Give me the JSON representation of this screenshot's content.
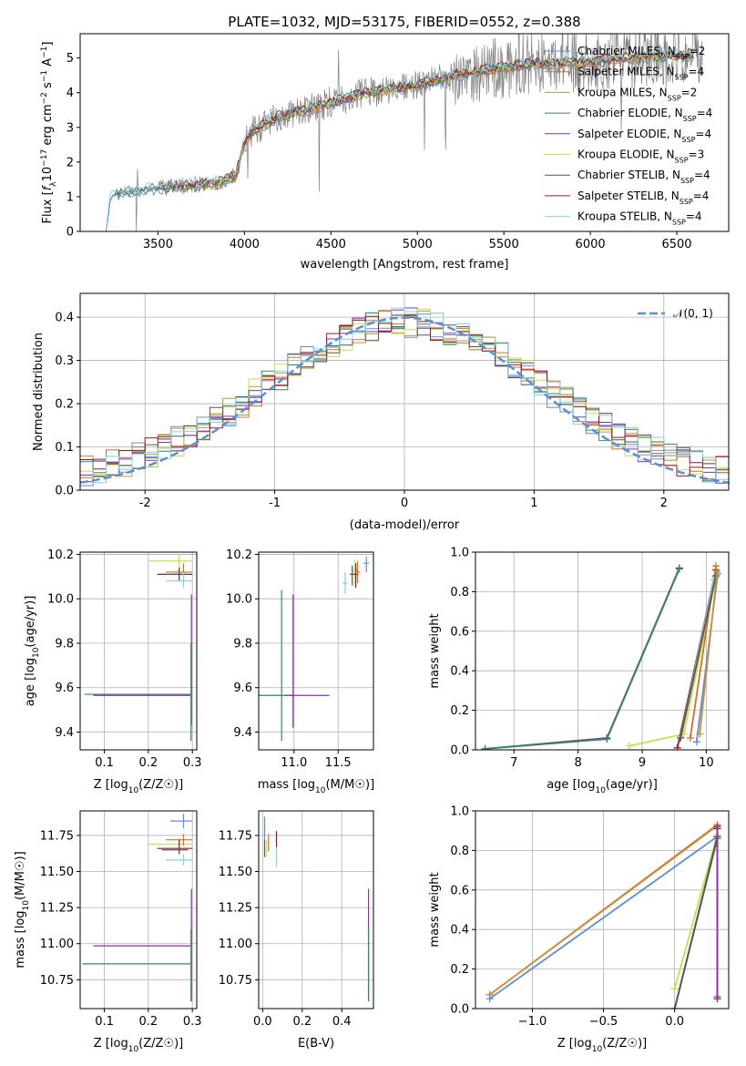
{
  "figure": {
    "title": "PLATE=1032, MJD=53175, FIBERID=0552, z=0.388"
  },
  "series_styles": [
    {
      "name": "Chabrier MILES, N_{SSP}=2",
      "color": "#5a8fd8"
    },
    {
      "name": "Salpeter MILES, N_{SSP}=4",
      "color": "#d06f28"
    },
    {
      "name": "Kroupa MILES, N_{SSP}=2",
      "color": "#c8923a"
    },
    {
      "name": "Chabrier ELODIE, N_{SSP}=4",
      "color": "#2e8b57"
    },
    {
      "name": "Salpeter ELODIE, N_{SSP}=4",
      "color": "#8b2fb3"
    },
    {
      "name": "Kroupa ELODIE, N_{SSP}=3",
      "color": "#c8e04a"
    },
    {
      "name": "Chabrier STELIB, N_{SSP}=4",
      "color": "#555555"
    },
    {
      "name": "Salpeter STELIB, N_{SSP}=4",
      "color": "#a01818"
    },
    {
      "name": "Kroupa STELIB, N_{SSP}=4",
      "color": "#7fd4e0"
    }
  ],
  "chart_data": [
    {
      "id": "spectrum",
      "type": "line",
      "xlabel": "wavelength [Angstrom, rest frame]",
      "ylabel": "Flux [f_λ 10^{-17} erg cm^{-2} s^{-1} A^{-1}]",
      "xlim": [
        3050,
        6800
      ],
      "ylim": [
        0,
        5.7
      ],
      "xticks": [
        3500,
        4000,
        4500,
        5000,
        5500,
        6000,
        6500
      ],
      "yticks": [
        0,
        1,
        2,
        3,
        4,
        5
      ],
      "grid": false,
      "legend": "right",
      "spectrum_knots": {
        "x": [
          3200,
          3220,
          3250,
          3400,
          3550,
          3700,
          3850,
          3950,
          4000,
          4050,
          4200,
          4500,
          4700,
          5000,
          5200,
          5400,
          5600,
          5800,
          6000,
          6200,
          6400,
          6600
        ],
        "y": [
          0,
          0.9,
          1.1,
          1.2,
          1.25,
          1.35,
          1.4,
          1.6,
          2.6,
          2.9,
          3.3,
          3.7,
          4.0,
          4.2,
          4.5,
          4.65,
          4.8,
          4.85,
          4.9,
          5.0,
          5.05,
          5.1
        ]
      }
    },
    {
      "id": "residuals",
      "type": "line",
      "xlabel": "(data-model)/error",
      "ylabel": "Normed distribution",
      "xlim": [
        -2.5,
        2.5
      ],
      "ylim": [
        0,
        0.455
      ],
      "xticks": [
        -2,
        -1,
        0,
        1,
        2
      ],
      "yticks": [
        0.0,
        0.1,
        0.2,
        0.3,
        0.4
      ],
      "ytick_labels": [
        "0.0",
        "0.1",
        "0.2",
        "0.3",
        "0.4"
      ],
      "grid": true,
      "legend": "top-right",
      "reference_curve": {
        "name": "𝒩(0, 1)",
        "mean": 0,
        "sigma": 1,
        "color": "#5a8fd8"
      },
      "bin_width": 0.1
    },
    {
      "id": "age-vs-z",
      "type": "scatter",
      "xlabel": "Z [log10(Z/Z☉)]",
      "ylabel": "age [log10(age/yr)]",
      "xlim": [
        0.045,
        0.31
      ],
      "ylim": [
        9.32,
        10.21
      ],
      "xticks": [
        0.1,
        0.2,
        0.3
      ],
      "yticks": [
        9.4,
        9.6,
        9.8,
        10.0,
        10.2
      ],
      "ytick_labels": [
        "9.4",
        "9.6",
        "9.8",
        "10.0",
        "10.2"
      ],
      "grid": true,
      "points": [
        {
          "s": 4,
          "x": 0.298,
          "y": 9.565,
          "xlo": 0.075,
          "xhi": 0.298,
          "ylo": 9.43,
          "yhi": 10.02
        },
        {
          "s": 3,
          "x": 0.297,
          "y": 9.57,
          "xlo": 0.055,
          "xhi": 0.297,
          "ylo": 9.36,
          "yhi": 9.8
        },
        {
          "s": 5,
          "x": 0.27,
          "y": 10.17,
          "xlo": 0.2,
          "xhi": 0.3,
          "ylo": 10.13,
          "yhi": 10.2
        },
        {
          "s": 7,
          "x": 0.27,
          "y": 10.11,
          "xlo": 0.22,
          "xhi": 0.3,
          "ylo": 10.08,
          "yhi": 10.14
        },
        {
          "s": 1,
          "x": 0.28,
          "y": 10.12,
          "xlo": 0.24,
          "xhi": 0.3,
          "ylo": 10.09,
          "yhi": 10.16
        },
        {
          "s": 6,
          "x": 0.27,
          "y": 10.11,
          "xlo": 0.23,
          "xhi": 0.29,
          "ylo": 10.09,
          "yhi": 10.13
        },
        {
          "s": 8,
          "x": 0.28,
          "y": 10.08,
          "xlo": 0.24,
          "xhi": 0.3,
          "ylo": 10.05,
          "yhi": 10.12
        }
      ]
    },
    {
      "id": "age-vs-mass",
      "type": "scatter",
      "xlabel": "mass [log10(M/M☉)]",
      "ylabel": "",
      "xlim": [
        10.6,
        11.9
      ],
      "ylim": [
        9.32,
        10.21
      ],
      "xticks": [
        11.0,
        11.5
      ],
      "xtick_labels": [
        "11.0",
        "11.5"
      ],
      "yticks": [
        9.4,
        9.6,
        9.8,
        10.0,
        10.2
      ],
      "ytick_labels": [
        "9.4",
        "9.6",
        "9.8",
        "10.0",
        "10.2"
      ],
      "grid": true,
      "points": [
        {
          "s": 3,
          "x": 10.86,
          "y": 9.565,
          "xlo": 10.6,
          "xhi": 11.0,
          "ylo": 9.36,
          "yhi": 10.04
        },
        {
          "s": 4,
          "x": 10.99,
          "y": 9.565,
          "xlo": 10.9,
          "xhi": 11.4,
          "ylo": 9.42,
          "yhi": 10.02
        },
        {
          "s": 5,
          "x": 11.69,
          "y": 10.13,
          "xlo": 11.65,
          "xhi": 11.72,
          "ylo": 10.06,
          "yhi": 10.18
        },
        {
          "s": 7,
          "x": 11.7,
          "y": 10.11,
          "xlo": 11.66,
          "xhi": 11.73,
          "ylo": 10.05,
          "yhi": 10.16
        },
        {
          "s": 1,
          "x": 11.72,
          "y": 10.12,
          "xlo": 11.69,
          "xhi": 11.75,
          "ylo": 10.07,
          "yhi": 10.17
        },
        {
          "s": 6,
          "x": 11.66,
          "y": 10.11,
          "xlo": 11.63,
          "xhi": 11.69,
          "ylo": 10.06,
          "yhi": 10.15
        },
        {
          "s": 8,
          "x": 11.58,
          "y": 10.07,
          "xlo": 11.55,
          "xhi": 11.61,
          "ylo": 10.02,
          "yhi": 10.12
        },
        {
          "s": 0,
          "x": 11.82,
          "y": 10.16,
          "xlo": 11.79,
          "xhi": 11.85,
          "ylo": 10.12,
          "yhi": 10.19
        }
      ]
    },
    {
      "id": "mass-weight-vs-age",
      "type": "line",
      "xlabel": "age [log10(age/yr)]",
      "ylabel": "mass weight",
      "xlim": [
        6.4,
        10.35
      ],
      "ylim": [
        0,
        1.0
      ],
      "xticks": [
        7,
        8,
        9,
        10
      ],
      "yticks": [
        0.0,
        0.2,
        0.4,
        0.6,
        0.8,
        1.0
      ],
      "ytick_labels": [
        "0.0",
        "0.2",
        "0.4",
        "0.6",
        "0.8",
        "1.0"
      ],
      "grid": true,
      "series": [
        {
          "s": 4,
          "x": [
            6.55,
            8.45,
            9.58
          ],
          "y": [
            0.005,
            0.06,
            0.92
          ]
        },
        {
          "s": 3,
          "x": [
            6.55,
            8.45,
            9.58
          ],
          "y": [
            0.005,
            0.055,
            0.915
          ]
        },
        {
          "s": 5,
          "x": [
            8.8,
            9.65,
            10.15
          ],
          "y": [
            0.02,
            0.08,
            0.87
          ]
        },
        {
          "s": 7,
          "x": [
            9.55,
            10.15
          ],
          "y": [
            0.01,
            0.91
          ]
        },
        {
          "s": 1,
          "x": [
            9.75,
            10.15
          ],
          "y": [
            0.06,
            0.93
          ]
        },
        {
          "s": 8,
          "x": [
            9.6,
            10.12
          ],
          "y": [
            0.065,
            0.86
          ]
        },
        {
          "s": 6,
          "x": [
            9.6,
            10.15
          ],
          "y": [
            0.06,
            0.88
          ]
        },
        {
          "s": 0,
          "x": [
            9.85,
            10.18
          ],
          "y": [
            0.04,
            0.89
          ]
        },
        {
          "s": 2,
          "x": [
            9.9,
            10.17
          ],
          "y": [
            0.08,
            0.9
          ]
        }
      ]
    },
    {
      "id": "mass-vs-z",
      "type": "scatter",
      "xlabel": "Z [log10(Z/Z☉)]",
      "ylabel": "mass [log10(M/M☉)]",
      "xlim": [
        0.045,
        0.31
      ],
      "ylim": [
        10.55,
        11.92
      ],
      "xticks": [
        0.1,
        0.2,
        0.3
      ],
      "yticks": [
        10.75,
        11.0,
        11.25,
        11.5,
        11.75
      ],
      "ytick_labels": [
        "10.75",
        "11.00",
        "11.25",
        "11.50",
        "11.75"
      ],
      "grid": true,
      "points": [
        {
          "s": 4,
          "x": 0.298,
          "y": 10.985,
          "xlo": 0.075,
          "xhi": 0.298,
          "ylo": 10.6,
          "yhi": 11.38
        },
        {
          "s": 3,
          "x": 0.297,
          "y": 10.86,
          "xlo": 0.05,
          "xhi": 0.297,
          "ylo": 10.6,
          "yhi": 11.1
        },
        {
          "s": 5,
          "x": 0.27,
          "y": 11.69,
          "xlo": 0.2,
          "xhi": 0.3,
          "ylo": 11.65,
          "yhi": 11.73
        },
        {
          "s": 7,
          "x": 0.27,
          "y": 11.66,
          "xlo": 0.22,
          "xhi": 0.3,
          "ylo": 11.62,
          "yhi": 11.72
        },
        {
          "s": 1,
          "x": 0.28,
          "y": 11.72,
          "xlo": 0.24,
          "xhi": 0.3,
          "ylo": 11.68,
          "yhi": 11.76
        },
        {
          "s": 0,
          "x": 0.28,
          "y": 11.85,
          "xlo": 0.25,
          "xhi": 0.3,
          "ylo": 11.8,
          "yhi": 11.9
        },
        {
          "s": 8,
          "x": 0.28,
          "y": 11.58,
          "xlo": 0.24,
          "xhi": 0.3,
          "ylo": 11.54,
          "yhi": 11.62
        },
        {
          "s": 6,
          "x": 0.27,
          "y": 11.65,
          "xlo": 0.23,
          "xhi": 0.29,
          "ylo": 11.62,
          "yhi": 11.68
        }
      ]
    },
    {
      "id": "mass-vs-ebv",
      "type": "scatter",
      "xlabel": "E(B-V)",
      "ylabel": "",
      "xlim": [
        -0.02,
        0.56
      ],
      "ylim": [
        10.55,
        11.92
      ],
      "xticks": [
        0.0,
        0.2,
        0.4
      ],
      "xtick_labels": [
        "0.0",
        "0.2",
        "0.4"
      ],
      "yticks": [
        10.75,
        11.0,
        11.25,
        11.5,
        11.75
      ],
      "ytick_labels": [
        "10.75",
        "11.00",
        "11.25",
        "11.50",
        "11.75"
      ],
      "grid": true,
      "points": [
        {
          "s": 4,
          "x": 0.535,
          "y": 10.985,
          "ylo": 10.6,
          "yhi": 11.38
        },
        {
          "s": 3,
          "x": 0.535,
          "y": 10.86,
          "ylo": 10.6,
          "yhi": 11.1
        },
        {
          "s": 0,
          "x": 0.01,
          "y": 11.8,
          "ylo": 11.72,
          "yhi": 11.88
        },
        {
          "s": 5,
          "x": 0.02,
          "y": 11.66,
          "ylo": 11.6,
          "yhi": 11.72
        },
        {
          "s": 7,
          "x": 0.07,
          "y": 11.72,
          "ylo": 11.66,
          "yhi": 11.78
        },
        {
          "s": 1,
          "x": 0.03,
          "y": 11.7,
          "ylo": 11.64,
          "yhi": 11.76
        },
        {
          "s": 8,
          "x": 0.07,
          "y": 11.6,
          "ylo": 11.53,
          "yhi": 11.67
        },
        {
          "s": 6,
          "x": 0.01,
          "y": 11.66,
          "ylo": 11.6,
          "yhi": 11.72
        }
      ]
    },
    {
      "id": "mass-weight-vs-z",
      "type": "line",
      "xlabel": "Z [log10(Z/Z☉)]",
      "ylabel": "mass weight",
      "xlim": [
        -1.4,
        0.38
      ],
      "ylim": [
        0,
        1.0
      ],
      "xticks": [
        -1.0,
        -0.5,
        0.0
      ],
      "xtick_labels": [
        "−1.0",
        "−0.5",
        "0.0"
      ],
      "yticks": [
        0.0,
        0.2,
        0.4,
        0.6,
        0.8,
        1.0
      ],
      "ytick_labels": [
        "0.0",
        "0.2",
        "0.4",
        "0.6",
        "0.8",
        "1.0"
      ],
      "grid": true,
      "series": [
        {
          "s": 1,
          "x": [
            -1.3,
            0.3
          ],
          "y": [
            0.07,
            0.93
          ]
        },
        {
          "s": 2,
          "x": [
            -1.3,
            0.3
          ],
          "y": [
            0.07,
            0.925
          ]
        },
        {
          "s": 0,
          "x": [
            -1.3,
            0.3
          ],
          "y": [
            0.05,
            0.87
          ]
        },
        {
          "s": 5,
          "x": [
            0.0,
            0.3
          ],
          "y": [
            0.1,
            0.88
          ]
        },
        {
          "s": 8,
          "x": [
            0.0,
            0.3
          ],
          "y": [
            0.0,
            0.86
          ]
        },
        {
          "s": 3,
          "x": [
            0.0,
            0.3
          ],
          "y": [
            0.0,
            0.86
          ]
        },
        {
          "s": 6,
          "x": [
            0.0,
            0.3
          ],
          "y": [
            0.0,
            0.87
          ]
        },
        {
          "s": 7,
          "x": [
            0.3,
            0.3
          ],
          "y": [
            0.05,
            0.91
          ]
        },
        {
          "s": 4,
          "x": [
            0.3,
            0.3
          ],
          "y": [
            0.06,
            0.92
          ]
        }
      ]
    }
  ]
}
